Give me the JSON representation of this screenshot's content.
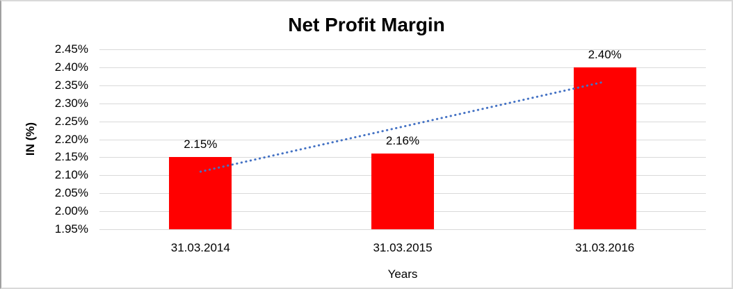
{
  "chart_data": {
    "type": "bar",
    "title": "Net Profit Margin",
    "xlabel": "Years",
    "ylabel": "IN (%)",
    "categories": [
      "31.03.2014",
      "31.03.2015",
      "31.03.2016"
    ],
    "values": [
      2.15,
      2.16,
      2.4
    ],
    "bar_labels": [
      "2.15%",
      "2.16%",
      "2.40%"
    ],
    "yticks": [
      "2.45%",
      "2.40%",
      "2.35%",
      "2.30%",
      "2.25%",
      "2.20%",
      "2.15%",
      "2.10%",
      "2.05%",
      "2.00%",
      "1.95%"
    ],
    "ytick_values": [
      2.45,
      2.4,
      2.35,
      2.3,
      2.25,
      2.2,
      2.15,
      2.1,
      2.05,
      2.0,
      1.95
    ],
    "ylim": [
      1.95,
      2.45
    ],
    "grid": "horizontal",
    "legend": "none",
    "bar_color": "#FF0000",
    "gridline_color": "#D9D9D9",
    "text_color": "#000000",
    "trendline": {
      "type": "linear",
      "style": "dotted",
      "color": "#4472C4",
      "start_category": "31.03.2014",
      "end_category": "31.03.2016",
      "start_value": 2.11,
      "end_value": 2.36
    }
  }
}
